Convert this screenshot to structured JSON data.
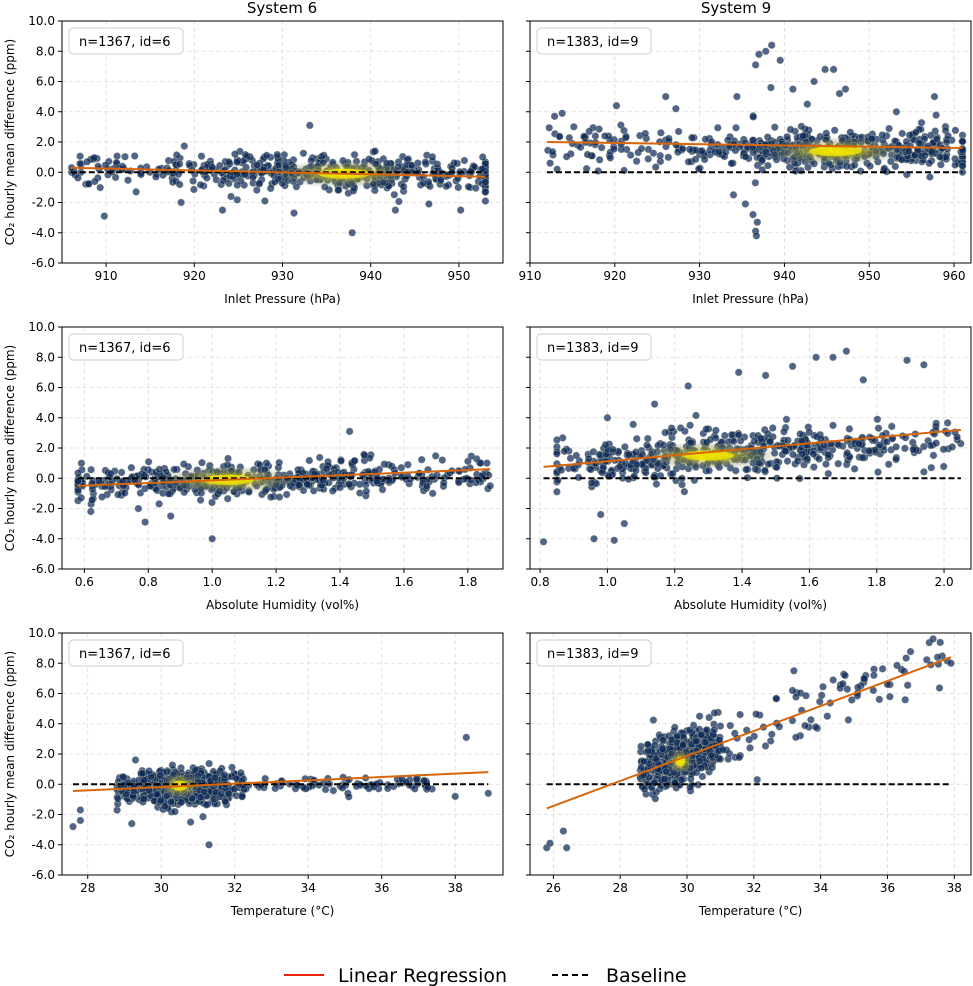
{
  "legend": {
    "regression_label": "Linear Regression",
    "baseline_label": "Baseline",
    "regression_color": "#e8250a",
    "baseline_color": "#000000"
  },
  "colors": {
    "point_fill": "#0d2a5c",
    "point_edge": "#c8c8a0",
    "density_core": "#f2e600",
    "density_mid": "#8a8f5a",
    "fit_line": "#d9660b",
    "grid": "#d9d9d9"
  },
  "chart_data": [
    {
      "type": "scatter",
      "column_title": "System 6",
      "annotation": "n=1367, id=6",
      "xlabel": "Inlet Pressure (hPa)",
      "ylabel": "CO₂ hourly mean difference (ppm)",
      "xlim": [
        905,
        955
      ],
      "ylim": [
        -6,
        10
      ],
      "xticks": [
        910,
        920,
        930,
        940,
        950
      ],
      "xtick_labels": [
        "910",
        "920",
        "930",
        "940",
        "950"
      ],
      "yticks": [
        -6,
        -4,
        -2,
        0,
        2,
        4,
        6,
        8,
        10
      ],
      "ytick_labels": [
        "-6.0",
        "-4.0",
        "-2.0",
        "0.0",
        "2.0",
        "4.0",
        "6.0",
        "8.0",
        "10.0"
      ],
      "cluster": {
        "x_range": [
          906,
          953
        ],
        "y_center": 0.0,
        "y_spread": 0.55,
        "density_x": 937,
        "density_y": -0.1
      },
      "outliers": [
        [
          909.8,
          -2.9
        ],
        [
          933.1,
          3.1
        ],
        [
          937.9,
          -4.0
        ],
        [
          923.2,
          -2.5
        ],
        [
          931.3,
          -2.7
        ],
        [
          950.2,
          -2.5
        ],
        [
          946.6,
          -2.1
        ],
        [
          918.5,
          -2.0
        ],
        [
          913.4,
          -1.3
        ],
        [
          953.0,
          -1.9
        ],
        [
          924.6,
          1.2
        ],
        [
          940.5,
          1.4
        ],
        [
          942.8,
          -2.5
        ],
        [
          928.0,
          -1.9
        ]
      ],
      "regression": {
        "x": [
          906,
          953
        ],
        "y": [
          0.3,
          -0.3
        ]
      },
      "baseline": {
        "x": [
          906,
          953
        ],
        "y": [
          0.0,
          0.0
        ]
      }
    },
    {
      "type": "scatter",
      "column_title": "System 9",
      "annotation": "n=1383, id=9",
      "xlabel": "Inlet Pressure (hPa)",
      "ylabel": "",
      "xlim": [
        910,
        962
      ],
      "ylim": [
        -6,
        10
      ],
      "xticks": [
        910,
        920,
        930,
        940,
        950,
        960
      ],
      "xtick_labels": [
        "910",
        "920",
        "930",
        "940",
        "950",
        "960"
      ],
      "yticks": [
        -6,
        -4,
        -2,
        0,
        2,
        4,
        6,
        8,
        10
      ],
      "ytick_labels": [],
      "cluster": {
        "x_range": [
          912,
          961
        ],
        "y_center": 1.6,
        "y_spread": 0.7,
        "density_x": 946,
        "density_y": 1.4
      },
      "outliers": [
        [
          938.5,
          8.4
        ],
        [
          937.8,
          8.0
        ],
        [
          937.0,
          7.8
        ],
        [
          939.5,
          7.4
        ],
        [
          936.6,
          7.1
        ],
        [
          944.8,
          6.8
        ],
        [
          945.8,
          6.8
        ],
        [
          943.5,
          6.0
        ],
        [
          941.0,
          5.5
        ],
        [
          934.4,
          5.0
        ],
        [
          926.0,
          5.0
        ],
        [
          957.7,
          5.0
        ],
        [
          946.5,
          5.2
        ],
        [
          934.0,
          -1.5
        ],
        [
          935.4,
          -2.1
        ],
        [
          936.3,
          -2.8
        ],
        [
          936.8,
          -3.3
        ],
        [
          936.6,
          -3.9
        ],
        [
          936.7,
          -4.2
        ],
        [
          927.2,
          4.2
        ],
        [
          912.9,
          3.7
        ],
        [
          913.8,
          3.9
        ],
        [
          920.2,
          4.4
        ],
        [
          938.4,
          5.6
        ],
        [
          942.7,
          4.5
        ],
        [
          947.2,
          5.5
        ],
        [
          953.2,
          4.0
        ],
        [
          959.3,
          2.4
        ]
      ],
      "regression": {
        "x": [
          912,
          961
        ],
        "y": [
          2.0,
          1.6
        ]
      },
      "baseline": {
        "x": [
          912,
          961
        ],
        "y": [
          0.0,
          0.0
        ]
      }
    },
    {
      "type": "scatter",
      "column_title": "",
      "annotation": "n=1367, id=6",
      "xlabel": "Absolute Humidity (vol%)",
      "ylabel": "CO₂ hourly mean difference (ppm)",
      "xlim": [
        0.53,
        1.91
      ],
      "ylim": [
        -6,
        10
      ],
      "xticks": [
        0.6,
        0.8,
        1.0,
        1.2,
        1.4,
        1.6,
        1.8
      ],
      "xtick_labels": [
        "0.6",
        "0.8",
        "1.0",
        "1.2",
        "1.4",
        "1.6",
        "1.8"
      ],
      "yticks": [
        -6,
        -4,
        -2,
        0,
        2,
        4,
        6,
        8,
        10
      ],
      "ytick_labels": [
        "-6.0",
        "-4.0",
        "-2.0",
        "0.0",
        "2.0",
        "4.0",
        "6.0",
        "8.0",
        "10.0"
      ],
      "cluster": {
        "x_range": [
          0.58,
          1.87
        ],
        "y_center": 0.0,
        "y_spread": 0.55,
        "density_x": 1.05,
        "density_y": -0.1
      },
      "outliers": [
        [
          1.0,
          -4.0
        ],
        [
          1.43,
          3.1
        ],
        [
          0.62,
          -2.2
        ],
        [
          0.79,
          -2.9
        ],
        [
          0.87,
          -2.5
        ],
        [
          1.69,
          -1.0
        ],
        [
          0.59,
          -1.3
        ],
        [
          1.84,
          1.0
        ],
        [
          1.86,
          1.0
        ],
        [
          1.72,
          1.2
        ],
        [
          1.17,
          1.0
        ]
      ],
      "regression": {
        "x": [
          0.58,
          1.87
        ],
        "y": [
          -0.5,
          0.6
        ]
      },
      "baseline": {
        "x": [
          0.58,
          1.87
        ],
        "y": [
          0.0,
          0.0
        ]
      }
    },
    {
      "type": "scatter",
      "column_title": "",
      "annotation": "n=1383, id=9",
      "xlabel": "Absolute Humidity (vol%)",
      "ylabel": "",
      "xlim": [
        0.77,
        2.08
      ],
      "ylim": [
        -6,
        10
      ],
      "xticks": [
        0.8,
        1.0,
        1.2,
        1.4,
        1.6,
        1.8,
        2.0
      ],
      "xtick_labels": [
        "0.8",
        "1.0",
        "1.2",
        "1.4",
        "1.6",
        "1.8",
        "2.0"
      ],
      "yticks": [
        -6,
        -4,
        -2,
        0,
        2,
        4,
        6,
        8,
        10
      ],
      "ytick_labels": [],
      "cluster": {
        "x_range": [
          0.85,
          2.05
        ],
        "y_center": 1.7,
        "y_spread": 0.8,
        "density_x": 1.3,
        "density_y": 1.5
      },
      "outliers": [
        [
          0.81,
          -4.2
        ],
        [
          0.96,
          -4.0
        ],
        [
          1.02,
          -4.1
        ],
        [
          1.05,
          -3.0
        ],
        [
          0.98,
          -2.4
        ],
        [
          1.39,
          7.0
        ],
        [
          1.62,
          8.0
        ],
        [
          1.67,
          8.0
        ],
        [
          1.71,
          8.4
        ],
        [
          1.89,
          7.8
        ],
        [
          1.94,
          7.5
        ],
        [
          1.76,
          6.5
        ],
        [
          1.55,
          7.4
        ],
        [
          1.47,
          6.8
        ],
        [
          1.24,
          6.1
        ],
        [
          1.0,
          4.0
        ],
        [
          1.14,
          4.9
        ]
      ],
      "regression": {
        "x": [
          0.81,
          2.05
        ],
        "y": [
          0.75,
          3.2
        ]
      },
      "baseline": {
        "x": [
          0.81,
          2.05
        ],
        "y": [
          0.0,
          0.0
        ]
      }
    },
    {
      "type": "scatter",
      "column_title": "",
      "annotation": "n=1367, id=6",
      "xlabel": "Temperature (°C)",
      "ylabel": "CO₂ hourly mean difference (ppm)",
      "xlim": [
        27.3,
        39.3
      ],
      "ylim": [
        -6,
        10
      ],
      "xticks": [
        28,
        30,
        32,
        34,
        36,
        38
      ],
      "xtick_labels": [
        "28",
        "30",
        "32",
        "34",
        "36",
        "38"
      ],
      "yticks": [
        -6,
        -4,
        -2,
        0,
        2,
        4,
        6,
        8,
        10
      ],
      "ytick_labels": [
        "-6.0",
        "-4.0",
        "-2.0",
        "0.0",
        "2.0",
        "4.0",
        "6.0",
        "8.0",
        "10.0"
      ],
      "cluster": {
        "x_range": [
          28.8,
          32.2
        ],
        "y_center": 0.0,
        "y_spread": 0.6,
        "density_x": 30.5,
        "density_y": -0.1
      },
      "outliers": [
        [
          38.3,
          3.1
        ],
        [
          27.6,
          -2.8
        ],
        [
          27.8,
          -2.4
        ],
        [
          27.8,
          -1.7
        ],
        [
          31.3,
          -4.0
        ],
        [
          38.0,
          -0.8
        ],
        [
          38.9,
          -0.6
        ],
        [
          36.9,
          -0.3
        ],
        [
          29.2,
          -2.6
        ],
        [
          30.8,
          -2.5
        ],
        [
          29.3,
          1.6
        ]
      ],
      "tail": {
        "x_range": [
          32.2,
          37.5
        ],
        "y_center": 0.0,
        "y_spread": 0.25
      },
      "regression": {
        "x": [
          27.6,
          38.9
        ],
        "y": [
          -0.45,
          0.8
        ]
      },
      "baseline": {
        "x": [
          27.6,
          38.9
        ],
        "y": [
          0.0,
          0.0
        ]
      }
    },
    {
      "type": "scatter",
      "column_title": "",
      "annotation": "n=1383, id=9",
      "xlabel": "Temperature (°C)",
      "ylabel": "",
      "xlim": [
        25.3,
        38.5
      ],
      "ylim": [
        -6,
        10
      ],
      "xticks": [
        26,
        28,
        30,
        32,
        34,
        36,
        38
      ],
      "xtick_labels": [
        "26",
        "28",
        "30",
        "32",
        "34",
        "36",
        "38"
      ],
      "yticks": [
        -6,
        -4,
        -2,
        0,
        2,
        4,
        6,
        8,
        10
      ],
      "ytick_labels": [],
      "cluster": {
        "x_range": [
          28.6,
          31.0
        ],
        "y_center": 1.5,
        "y_spread": 0.9,
        "density_x": 29.8,
        "density_y": 1.5
      },
      "outliers": [
        [
          25.8,
          -4.2
        ],
        [
          25.9,
          -3.9
        ],
        [
          26.4,
          -4.2
        ],
        [
          26.3,
          -3.1
        ],
        [
          37.5,
          8.4
        ],
        [
          37.9,
          8.0
        ],
        [
          37.3,
          7.9
        ],
        [
          36.0,
          6.6
        ],
        [
          35.3,
          7.0
        ],
        [
          33.2,
          7.5
        ],
        [
          32.1,
          0.3
        ]
      ],
      "tail": {
        "x_range": [
          30.5,
          37.8
        ],
        "y_center": "fit",
        "y_spread": 1.0
      },
      "regression": {
        "x": [
          25.8,
          37.9
        ],
        "y": [
          -1.6,
          8.4
        ]
      },
      "baseline": {
        "x": [
          25.8,
          37.9
        ],
        "y": [
          0.0,
          0.0
        ]
      }
    }
  ]
}
